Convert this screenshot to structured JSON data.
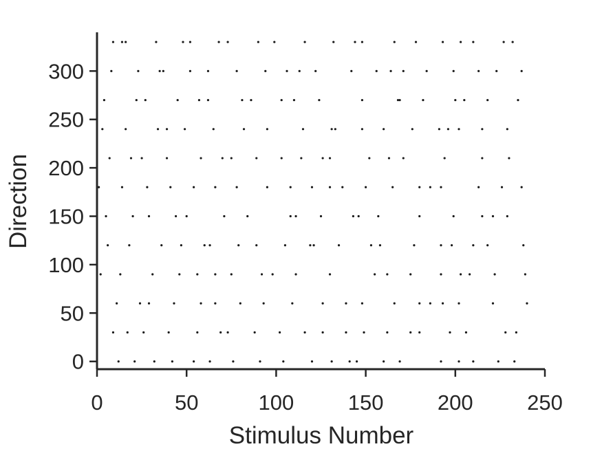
{
  "chart_data": {
    "type": "scatter",
    "xlabel": "Stimulus Number",
    "ylabel": "Direction",
    "xlim": [
      0,
      250
    ],
    "ylim": [
      -8,
      340
    ],
    "xticks": [
      0,
      50,
      100,
      150,
      200,
      250
    ],
    "yticks": [
      0,
      50,
      100,
      150,
      200,
      250,
      300
    ],
    "grid": false,
    "marker_color": "#1a1a1a",
    "axis_color": "#262626",
    "series": [
      {
        "points": [
          [
            12,
            0
          ],
          [
            21,
            0
          ],
          [
            32,
            0
          ],
          [
            42,
            0
          ],
          [
            54,
            0
          ],
          [
            63,
            0
          ],
          [
            76,
            0
          ],
          [
            91,
            0
          ],
          [
            104,
            0
          ],
          [
            120,
            0
          ],
          [
            131,
            0
          ],
          [
            141,
            0
          ],
          [
            145,
            0
          ],
          [
            160,
            0
          ],
          [
            169,
            0
          ],
          [
            192,
            0
          ],
          [
            202,
            0
          ],
          [
            210,
            0
          ],
          [
            224,
            0
          ],
          [
            233,
            0
          ],
          [
            9,
            30
          ],
          [
            17,
            30
          ],
          [
            26,
            30
          ],
          [
            40,
            30
          ],
          [
            56,
            30
          ],
          [
            69,
            30
          ],
          [
            73,
            30
          ],
          [
            88,
            30
          ],
          [
            102,
            30
          ],
          [
            116,
            30
          ],
          [
            126,
            30
          ],
          [
            139,
            30
          ],
          [
            149,
            30
          ],
          [
            162,
            30
          ],
          [
            175,
            30
          ],
          [
            180,
            30
          ],
          [
            197,
            30
          ],
          [
            206,
            30
          ],
          [
            228,
            30
          ],
          [
            234,
            30
          ],
          [
            11,
            60
          ],
          [
            24,
            60
          ],
          [
            29,
            60
          ],
          [
            43,
            60
          ],
          [
            58,
            60
          ],
          [
            66,
            60
          ],
          [
            80,
            60
          ],
          [
            93,
            60
          ],
          [
            109,
            60
          ],
          [
            126,
            60
          ],
          [
            139,
            60
          ],
          [
            148,
            60
          ],
          [
            166,
            60
          ],
          [
            180,
            60
          ],
          [
            186,
            60
          ],
          [
            193,
            60
          ],
          [
            202,
            60
          ],
          [
            221,
            60
          ],
          [
            240,
            60
          ],
          [
            2,
            90
          ],
          [
            13,
            90
          ],
          [
            31,
            90
          ],
          [
            46,
            90
          ],
          [
            56,
            90
          ],
          [
            66,
            90
          ],
          [
            75,
            90
          ],
          [
            92,
            90
          ],
          [
            98,
            90
          ],
          [
            111,
            90
          ],
          [
            130,
            90
          ],
          [
            155,
            90
          ],
          [
            162,
            90
          ],
          [
            175,
            90
          ],
          [
            192,
            90
          ],
          [
            203,
            90
          ],
          [
            208,
            90
          ],
          [
            222,
            90
          ],
          [
            239,
            90
          ],
          [
            6,
            120
          ],
          [
            18,
            120
          ],
          [
            36,
            120
          ],
          [
            47,
            120
          ],
          [
            60,
            120
          ],
          [
            63,
            120
          ],
          [
            79,
            120
          ],
          [
            89,
            120
          ],
          [
            105,
            120
          ],
          [
            119,
            120
          ],
          [
            121,
            120
          ],
          [
            135,
            120
          ],
          [
            153,
            120
          ],
          [
            158,
            120
          ],
          [
            177,
            120
          ],
          [
            192,
            120
          ],
          [
            198,
            120
          ],
          [
            210,
            120
          ],
          [
            218,
            120
          ],
          [
            238,
            120
          ],
          [
            5,
            150
          ],
          [
            20,
            150
          ],
          [
            29,
            150
          ],
          [
            44,
            150
          ],
          [
            50,
            150
          ],
          [
            71,
            150
          ],
          [
            84,
            150
          ],
          [
            108,
            150
          ],
          [
            111,
            150
          ],
          [
            125,
            150
          ],
          [
            143,
            150
          ],
          [
            146,
            150
          ],
          [
            157,
            150
          ],
          [
            180,
            150
          ],
          [
            199,
            150
          ],
          [
            215,
            150
          ],
          [
            221,
            150
          ],
          [
            229,
            150
          ],
          [
            1,
            180
          ],
          [
            14,
            180
          ],
          [
            28,
            180
          ],
          [
            41,
            180
          ],
          [
            54,
            180
          ],
          [
            66,
            180
          ],
          [
            78,
            180
          ],
          [
            95,
            180
          ],
          [
            108,
            180
          ],
          [
            120,
            180
          ],
          [
            130,
            180
          ],
          [
            137,
            180
          ],
          [
            150,
            180
          ],
          [
            165,
            180
          ],
          [
            180,
            180
          ],
          [
            186,
            180
          ],
          [
            192,
            180
          ],
          [
            213,
            180
          ],
          [
            226,
            180
          ],
          [
            237,
            180
          ],
          [
            7,
            210
          ],
          [
            19,
            210
          ],
          [
            25,
            210
          ],
          [
            39,
            210
          ],
          [
            58,
            210
          ],
          [
            70,
            210
          ],
          [
            75,
            210
          ],
          [
            89,
            210
          ],
          [
            103,
            210
          ],
          [
            114,
            210
          ],
          [
            126,
            210
          ],
          [
            130,
            210
          ],
          [
            152,
            210
          ],
          [
            163,
            210
          ],
          [
            171,
            210
          ],
          [
            194,
            210
          ],
          [
            215,
            210
          ],
          [
            230,
            210
          ],
          [
            3,
            240
          ],
          [
            16,
            240
          ],
          [
            34,
            240
          ],
          [
            39,
            240
          ],
          [
            49,
            240
          ],
          [
            65,
            240
          ],
          [
            82,
            240
          ],
          [
            95,
            240
          ],
          [
            115,
            240
          ],
          [
            131,
            240
          ],
          [
            133,
            240
          ],
          [
            148,
            240
          ],
          [
            160,
            240
          ],
          [
            176,
            240
          ],
          [
            191,
            240
          ],
          [
            196,
            240
          ],
          [
            202,
            240
          ],
          [
            215,
            240
          ],
          [
            229,
            240
          ],
          [
            4,
            270
          ],
          [
            22,
            270
          ],
          [
            27,
            270
          ],
          [
            45,
            270
          ],
          [
            57,
            270
          ],
          [
            62,
            270
          ],
          [
            81,
            270
          ],
          [
            86,
            270
          ],
          [
            103,
            270
          ],
          [
            110,
            270
          ],
          [
            124,
            270
          ],
          [
            148,
            270
          ],
          [
            168,
            270
          ],
          [
            169,
            270
          ],
          [
            182,
            270
          ],
          [
            200,
            270
          ],
          [
            205,
            270
          ],
          [
            218,
            270
          ],
          [
            235,
            270
          ],
          [
            8,
            300
          ],
          [
            23,
            300
          ],
          [
            35,
            300
          ],
          [
            37,
            300
          ],
          [
            52,
            300
          ],
          [
            62,
            300
          ],
          [
            78,
            300
          ],
          [
            94,
            300
          ],
          [
            106,
            300
          ],
          [
            113,
            300
          ],
          [
            122,
            300
          ],
          [
            142,
            300
          ],
          [
            156,
            300
          ],
          [
            164,
            300
          ],
          [
            171,
            300
          ],
          [
            184,
            300
          ],
          [
            199,
            300
          ],
          [
            213,
            300
          ],
          [
            223,
            300
          ],
          [
            237,
            300
          ],
          [
            9,
            330
          ],
          [
            14,
            330
          ],
          [
            16,
            330
          ],
          [
            33,
            330
          ],
          [
            48,
            330
          ],
          [
            52,
            330
          ],
          [
            68,
            330
          ],
          [
            73,
            330
          ],
          [
            90,
            330
          ],
          [
            99,
            330
          ],
          [
            116,
            330
          ],
          [
            132,
            330
          ],
          [
            144,
            330
          ],
          [
            148,
            330
          ],
          [
            166,
            330
          ],
          [
            178,
            330
          ],
          [
            193,
            330
          ],
          [
            203,
            330
          ],
          [
            210,
            330
          ],
          [
            227,
            330
          ],
          [
            232,
            330
          ]
        ]
      }
    ]
  }
}
